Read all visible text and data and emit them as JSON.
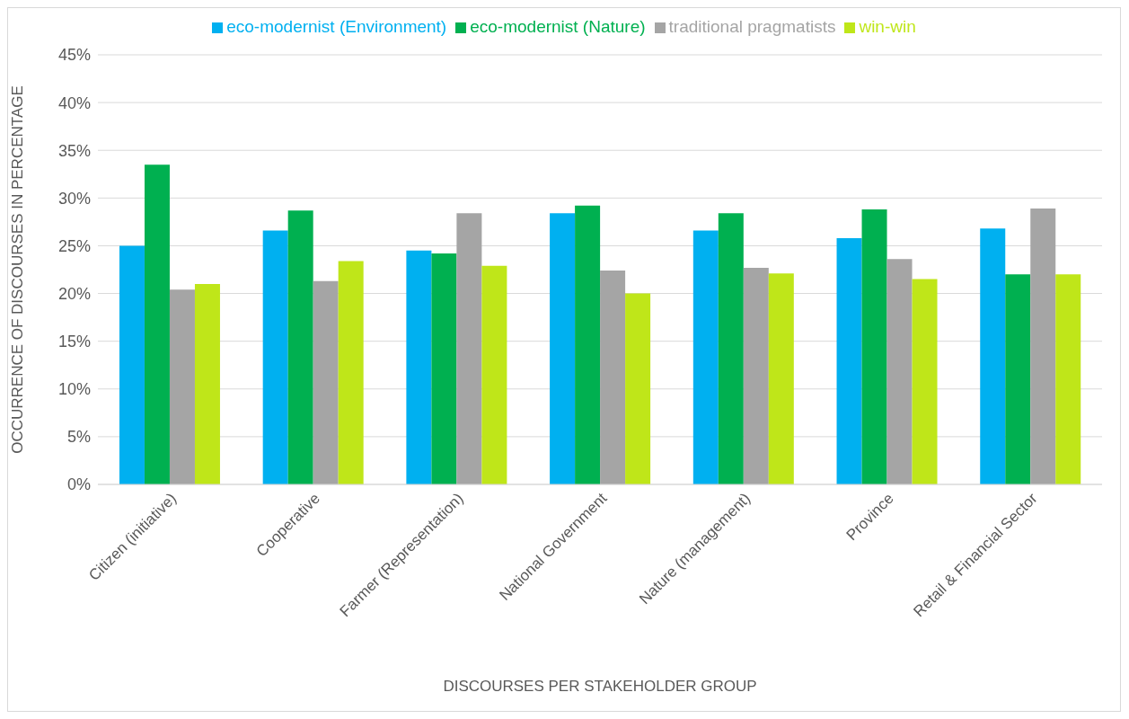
{
  "chart_data": {
    "type": "bar",
    "xlabel": "DISCOURSES PER STAKEHOLDER GROUP",
    "ylabel": "OCCURRENCE OF DISCOURSES IN PERCENTAGE",
    "categories": [
      "Citizen (initiative)",
      "Cooperative",
      "Farmer (Representation)",
      "National Government",
      "Nature (management)",
      "Province",
      "Retail & Financial Sector"
    ],
    "series": [
      {
        "name": "eco-modernist (Environment)",
        "color": "#00b0f0",
        "values": [
          25.0,
          26.6,
          24.5,
          28.4,
          26.6,
          25.8,
          26.8
        ]
      },
      {
        "name": "eco-modernist (Nature)",
        "color": "#00b050",
        "values": [
          33.5,
          28.7,
          24.2,
          29.2,
          28.4,
          28.8,
          22.0
        ]
      },
      {
        "name": "traditional pragmatists",
        "color": "#a5a5a5",
        "values": [
          20.4,
          21.3,
          28.4,
          22.4,
          22.7,
          23.6,
          28.9
        ]
      },
      {
        "name": "win-win",
        "color": "#bfe619",
        "values": [
          21.0,
          23.4,
          22.9,
          20.0,
          22.1,
          21.5,
          22.0
        ]
      }
    ],
    "ylim": [
      0,
      45
    ],
    "yticks": [
      {
        "value": 0,
        "label": "0%"
      },
      {
        "value": 5,
        "label": "5%"
      },
      {
        "value": 10,
        "label": "10%"
      },
      {
        "value": 15,
        "label": "15%"
      },
      {
        "value": 20,
        "label": "20%"
      },
      {
        "value": 25,
        "label": "25%"
      },
      {
        "value": 30,
        "label": "30%"
      },
      {
        "value": 35,
        "label": "35%"
      },
      {
        "value": 40,
        "label": "40%"
      },
      {
        "value": 45,
        "label": "45%"
      }
    ],
    "grid": "y",
    "legend": "top"
  }
}
